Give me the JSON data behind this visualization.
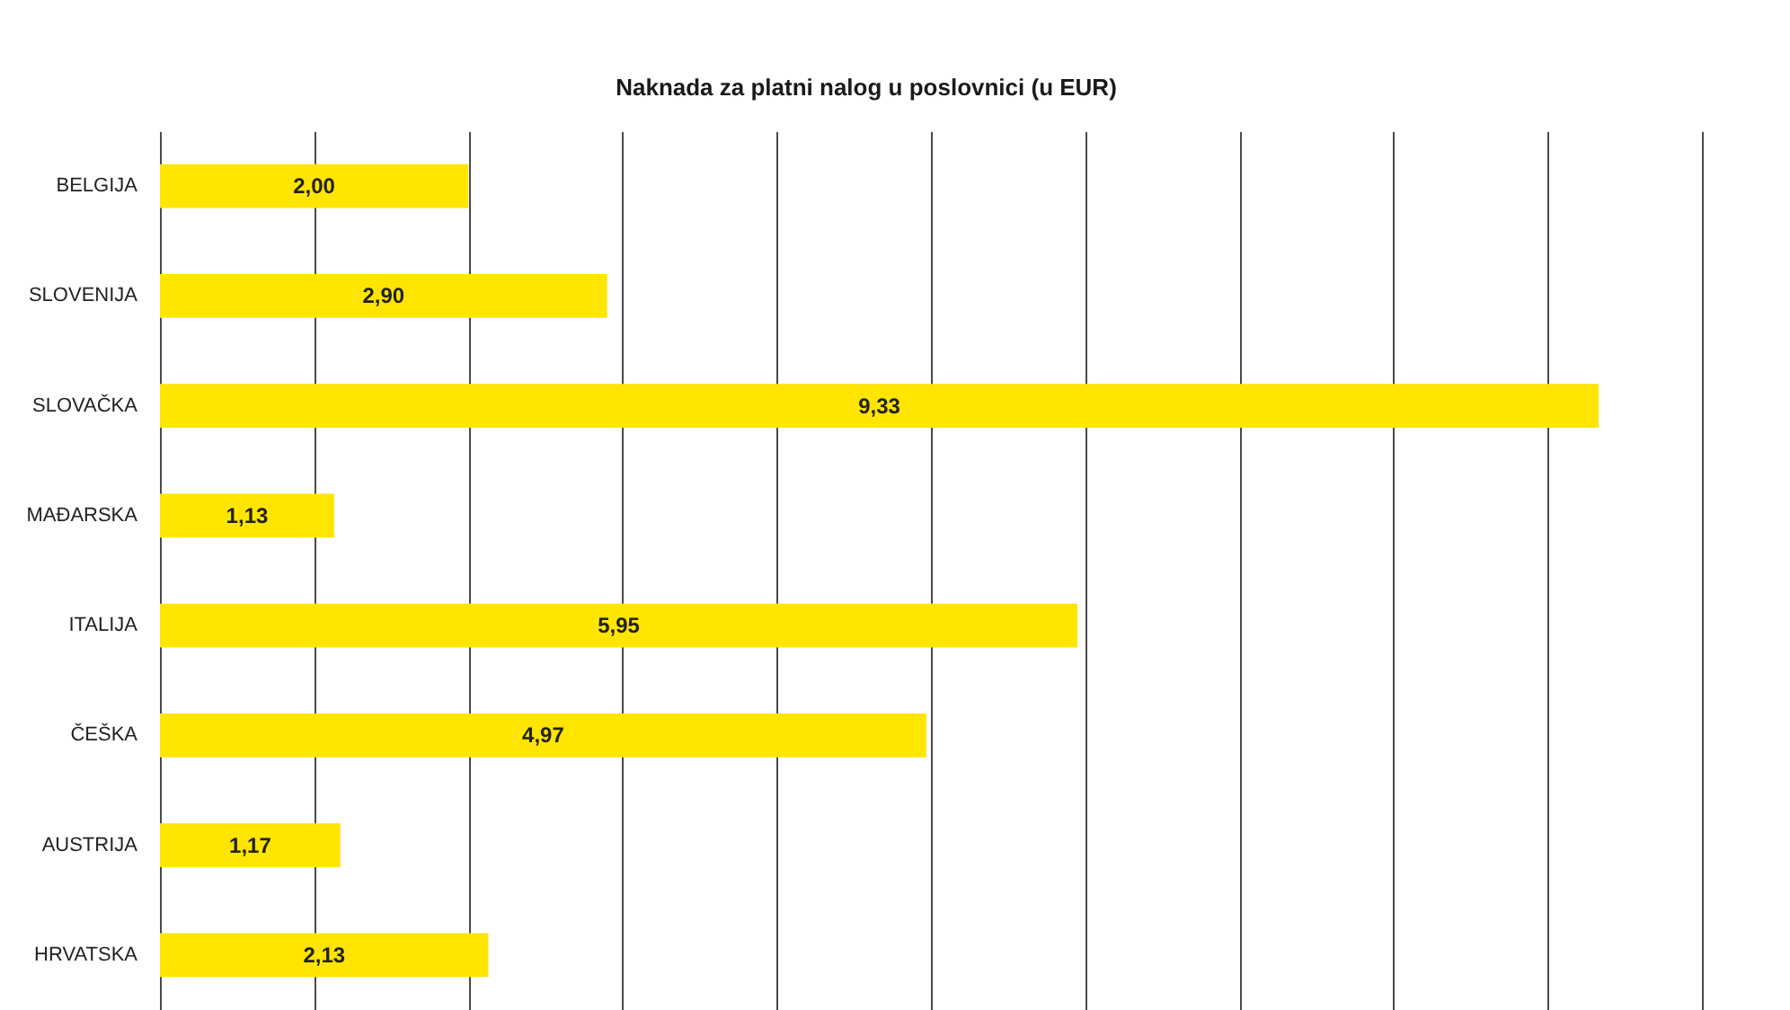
{
  "chart_data": {
    "type": "bar",
    "title": "Naknada za platni nalog u poslovnici (u EUR)",
    "orientation": "horizontal",
    "categories": [
      "BELGIJA",
      "SLOVENIJA",
      "SLOVAČKA",
      "MAĐARSKA",
      "ITALIJA",
      "ČEŠKA",
      "AUSTRIJA",
      "HRVATSKA"
    ],
    "values": [
      2.0,
      2.9,
      9.33,
      1.13,
      5.95,
      4.97,
      1.17,
      2.13
    ],
    "value_labels": [
      "2,00",
      "2,90",
      "9,33",
      "1,13",
      "5,95",
      "4,97",
      "1,17",
      "2,13"
    ],
    "color": "#ffe500",
    "xlim": [
      0,
      10
    ],
    "xticks": [
      {
        "value": 0,
        "label": null
      },
      {
        "value": 1,
        "label": null
      },
      {
        "value": 2,
        "label": null
      },
      {
        "value": 3,
        "label": null
      },
      {
        "value": 4,
        "label": null
      },
      {
        "value": 5,
        "label": null
      },
      {
        "value": 6,
        "label": null
      },
      {
        "value": 7,
        "label": null
      },
      {
        "value": 8,
        "label": null
      },
      {
        "value": 9,
        "label": null
      },
      {
        "value": 10,
        "label": null
      }
    ],
    "grid": "x",
    "tick_labels": "y"
  }
}
